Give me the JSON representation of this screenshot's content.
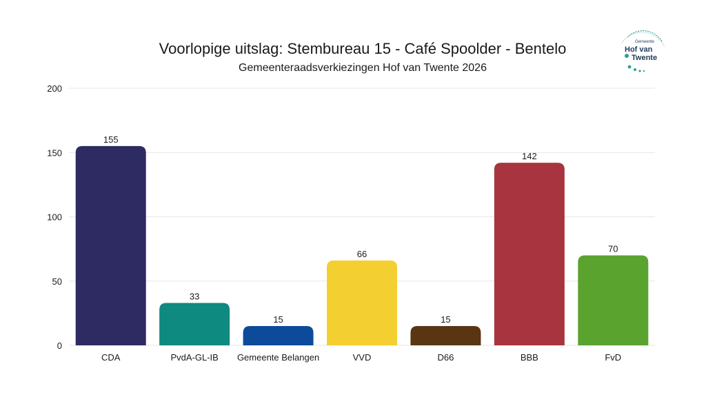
{
  "header": {
    "title": "Voorlopige uitslag: Stembureau 15 - Café Spoolder - Bentelo",
    "subtitle": "Gemeenteraadsverkiezingen Hof van Twente 2026"
  },
  "logo": {
    "small": "Gemeente",
    "line1": "Hof van",
    "line2": "Twente",
    "color": "#1f3a5a",
    "accent": "#2aa198"
  },
  "chart_data": {
    "type": "bar",
    "title": "Voorlopige uitslag: Stembureau 15 - Café Spoolder - Bentelo",
    "subtitle": "Gemeenteraadsverkiezingen Hof van Twente 2026",
    "categories": [
      "CDA",
      "PvdA-GL-IB",
      "Gemeente Belangen",
      "VVD",
      "D66",
      "BBB",
      "FvD"
    ],
    "values": [
      155,
      33,
      15,
      66,
      15,
      142,
      70
    ],
    "colors": [
      "#2e2b63",
      "#0e8a80",
      "#0d4a9a",
      "#f4cf31",
      "#5a3514",
      "#a8343f",
      "#5aa32f"
    ],
    "ylim": [
      0,
      200
    ],
    "yticks": [
      0,
      50,
      100,
      150,
      200
    ],
    "grid": true,
    "xlabel": "",
    "ylabel": ""
  }
}
